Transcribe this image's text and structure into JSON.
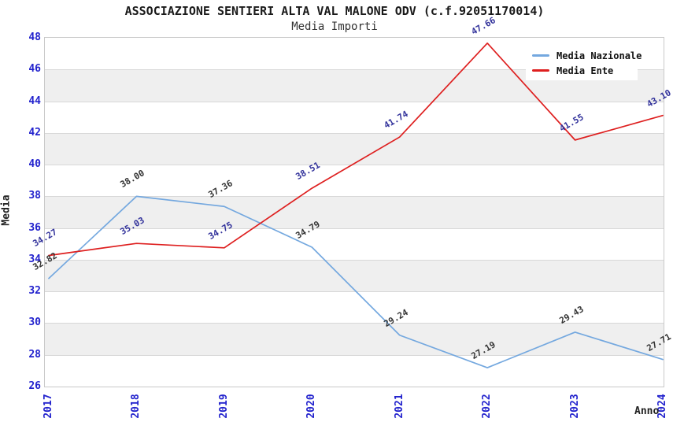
{
  "chart_data": {
    "type": "line",
    "title": "ASSOCIAZIONE SENTIERI ALTA VAL MALONE ODV (c.f.92051170014)",
    "subtitle": "Media Importi",
    "xlabel": "Anno",
    "ylabel": "Media",
    "categories": [
      "2017",
      "2018",
      "2019",
      "2020",
      "2021",
      "2022",
      "2023",
      "2024"
    ],
    "series": [
      {
        "name": "Media Nazionale",
        "color": "#74a8df",
        "label_color": "#333333",
        "values": [
          32.82,
          38.0,
          37.36,
          34.79,
          29.24,
          27.19,
          29.43,
          27.71
        ],
        "point_labels": [
          "32.82",
          "38.00",
          "37.36",
          "34.79",
          "29.24",
          "27.19",
          "29.43",
          "27.71"
        ]
      },
      {
        "name": "Media Ente",
        "color": "#de1f1f",
        "label_color": "#32329b",
        "values": [
          34.27,
          35.03,
          34.75,
          38.51,
          41.74,
          47.66,
          41.55,
          43.1
        ],
        "point_labels": [
          "34.27",
          "35.03",
          "34.75",
          "38.51",
          "41.74",
          "47.66",
          "41.55",
          "43.10"
        ]
      }
    ],
    "ylim": [
      26,
      48
    ],
    "ytick_step": 2,
    "yticks": [
      "26",
      "28",
      "30",
      "32",
      "34",
      "36",
      "38",
      "40",
      "42",
      "44",
      "46",
      "48"
    ],
    "grid": "horizontal-bands",
    "legend_position": "top-right",
    "colors": {
      "band": "#efefef",
      "gridline": "#d8d8d8",
      "plot_border": "#c9c9c9",
      "tick_label": "#2222cd",
      "axis_title": "#222222",
      "title_text": "#1a1a1a"
    }
  }
}
